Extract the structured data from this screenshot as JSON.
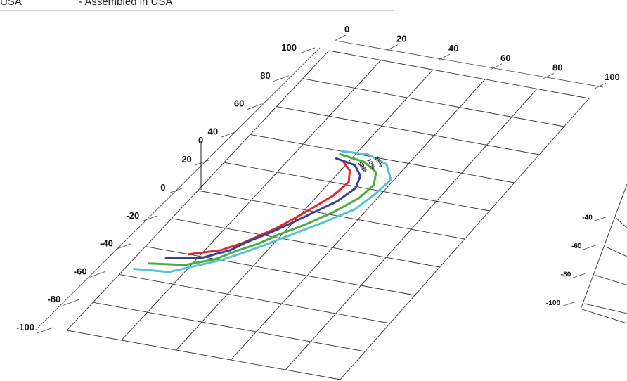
{
  "header": {
    "country_text": "USA",
    "assembled_text": "-   Assembled in USA"
  },
  "chart_data": [
    {
      "type": "line",
      "title": "",
      "xlabel": "",
      "ylabel": "",
      "x_ticks": [
        "0",
        "20",
        "40",
        "60",
        "80",
        "100"
      ],
      "y_ticks": [
        "100",
        "80",
        "60",
        "40",
        "20",
        "0",
        "-20",
        "-40",
        "-60",
        "-80",
        "-100"
      ],
      "origin_label": "0",
      "xlim": [
        0,
        100
      ],
      "ylim": [
        -100,
        100
      ],
      "grid": true,
      "series": [
        {
          "name": "2%",
          "color": "#e8262a",
          "points": [
            [
              16,
              -40
            ],
            [
              25,
              -34
            ],
            [
              30,
              -27
            ],
            [
              33,
              -21
            ],
            [
              36,
              -15
            ],
            [
              39,
              -7
            ],
            [
              42,
              2
            ],
            [
              45,
              12
            ],
            [
              46,
              22
            ],
            [
              43,
              29
            ],
            [
              38,
              34
            ]
          ]
        },
        {
          "name": "5%",
          "color": "#33419a",
          "points": [
            [
              10,
              -45
            ],
            [
              21,
              -41
            ],
            [
              28,
              -33
            ],
            [
              31,
              -26
            ],
            [
              35,
              -19
            ],
            [
              39,
              -11
            ],
            [
              43,
              -2
            ],
            [
              48,
              9
            ],
            [
              50,
              19
            ],
            [
              48,
              27
            ],
            [
              43,
              33
            ],
            [
              35,
              35
            ]
          ]
        },
        {
          "name": "10%",
          "color": "#4aac3d",
          "points": [
            [
              6,
              -50
            ],
            [
              18,
              -47
            ],
            [
              26,
              -40
            ],
            [
              30,
              -33
            ],
            [
              35,
              -26
            ],
            [
              39,
              -18
            ],
            [
              45,
              -8
            ],
            [
              50,
              2
            ],
            [
              54,
              13
            ],
            [
              55,
              23
            ],
            [
              52,
              31
            ],
            [
              45,
              36
            ],
            [
              35,
              38
            ]
          ]
        },
        {
          "name": "25%",
          "color": "#55c2da",
          "points": [
            [
              3,
              -55
            ],
            [
              15,
              -53
            ],
            [
              22,
              -46
            ],
            [
              28,
              -40
            ],
            [
              33,
              -33
            ],
            [
              38,
              -25
            ],
            [
              44,
              -15
            ],
            [
              50,
              -5
            ],
            [
              56,
              6
            ],
            [
              58,
              17
            ],
            [
              59,
              28
            ],
            [
              53,
              37
            ],
            [
              44,
              41
            ],
            [
              35,
              40
            ]
          ]
        }
      ]
    },
    {
      "type": "line",
      "title": "",
      "y_ticks": [
        "-40",
        "-60",
        "-80",
        "-100"
      ],
      "grid": true,
      "series": []
    }
  ]
}
